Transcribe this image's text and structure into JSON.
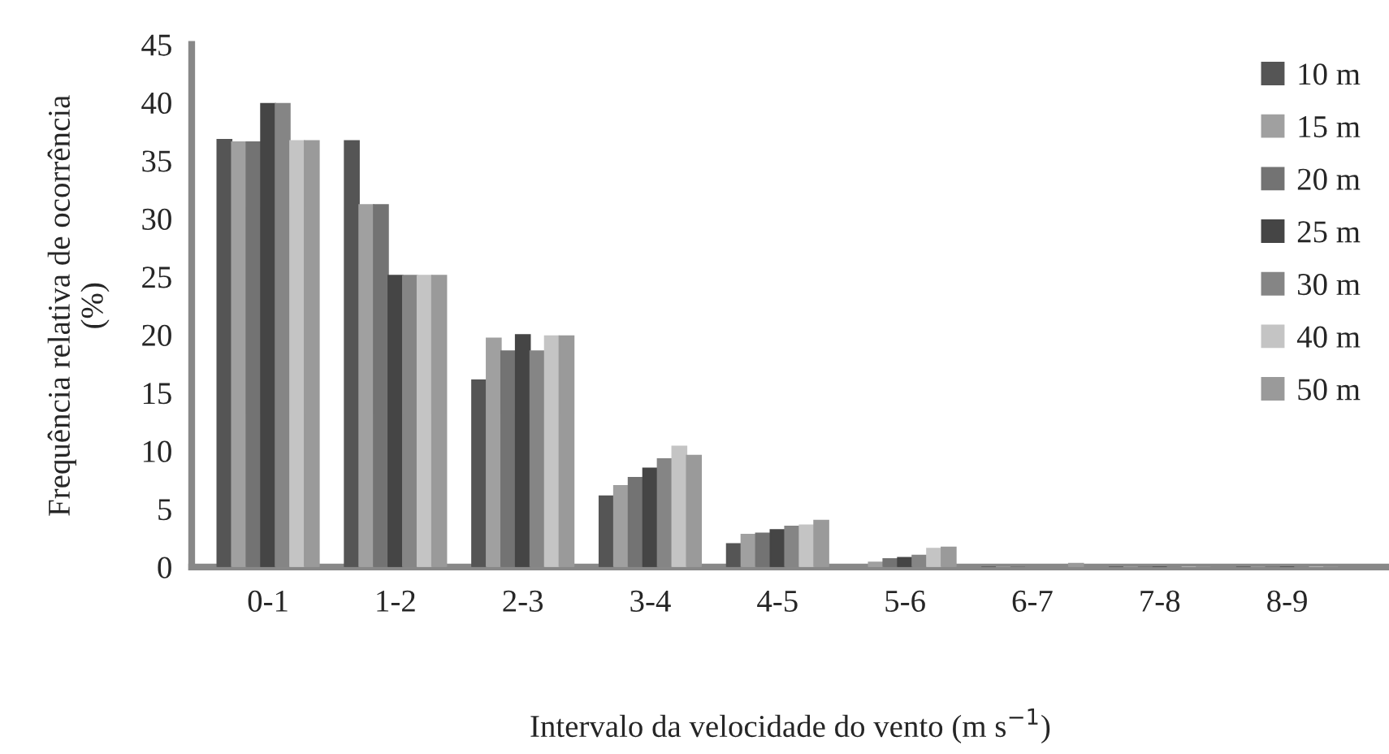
{
  "chart_data": {
    "type": "bar",
    "xlabel": "Intervalo da velocidade do vento (m s$^{−1}$)",
    "ylabel": "Frequência relativa de ocorrência\n(%)",
    "categories": [
      "0-1",
      "1-2",
      "2-3",
      "3-4",
      "4-5",
      "5-6",
      "6-7",
      "7-8",
      "8-9"
    ],
    "series": [
      {
        "name": "10 m",
        "color": "#555555",
        "values": [
          36.8,
          36.7,
          16.1,
          6.1,
          2.0,
          null,
          0,
          0,
          0
        ]
      },
      {
        "name": "15 m",
        "color": "#a0a0a0",
        "values": [
          36.6,
          31.2,
          19.7,
          7.0,
          2.8,
          0.4,
          0,
          0,
          0
        ]
      },
      {
        "name": "20 m",
        "color": "#737373",
        "values": [
          36.6,
          31.2,
          18.6,
          7.7,
          2.9,
          0.7,
          0,
          0,
          0
        ]
      },
      {
        "name": "25 m",
        "color": "#454545",
        "values": [
          39.9,
          25.1,
          20.0,
          8.5,
          3.2,
          0.8,
          null,
          0,
          0
        ]
      },
      {
        "name": "30 m",
        "color": "#858585",
        "values": [
          39.9,
          25.1,
          18.6,
          9.3,
          3.5,
          1.0,
          null,
          0,
          0
        ]
      },
      {
        "name": "40 m",
        "color": "#c4c4c4",
        "values": [
          36.7,
          25.1,
          19.9,
          10.4,
          3.6,
          1.6,
          null,
          0,
          0
        ]
      },
      {
        "name": "50 m",
        "color": "#9a9a9a",
        "values": [
          36.7,
          25.1,
          19.9,
          9.6,
          4.0,
          1.7,
          0.3,
          0,
          0
        ]
      }
    ],
    "ylim": [
      0,
      45
    ],
    "yticks": [
      0,
      5,
      10,
      15,
      20,
      25,
      30,
      35,
      40,
      45
    ],
    "grid": false,
    "legend": "top right"
  }
}
